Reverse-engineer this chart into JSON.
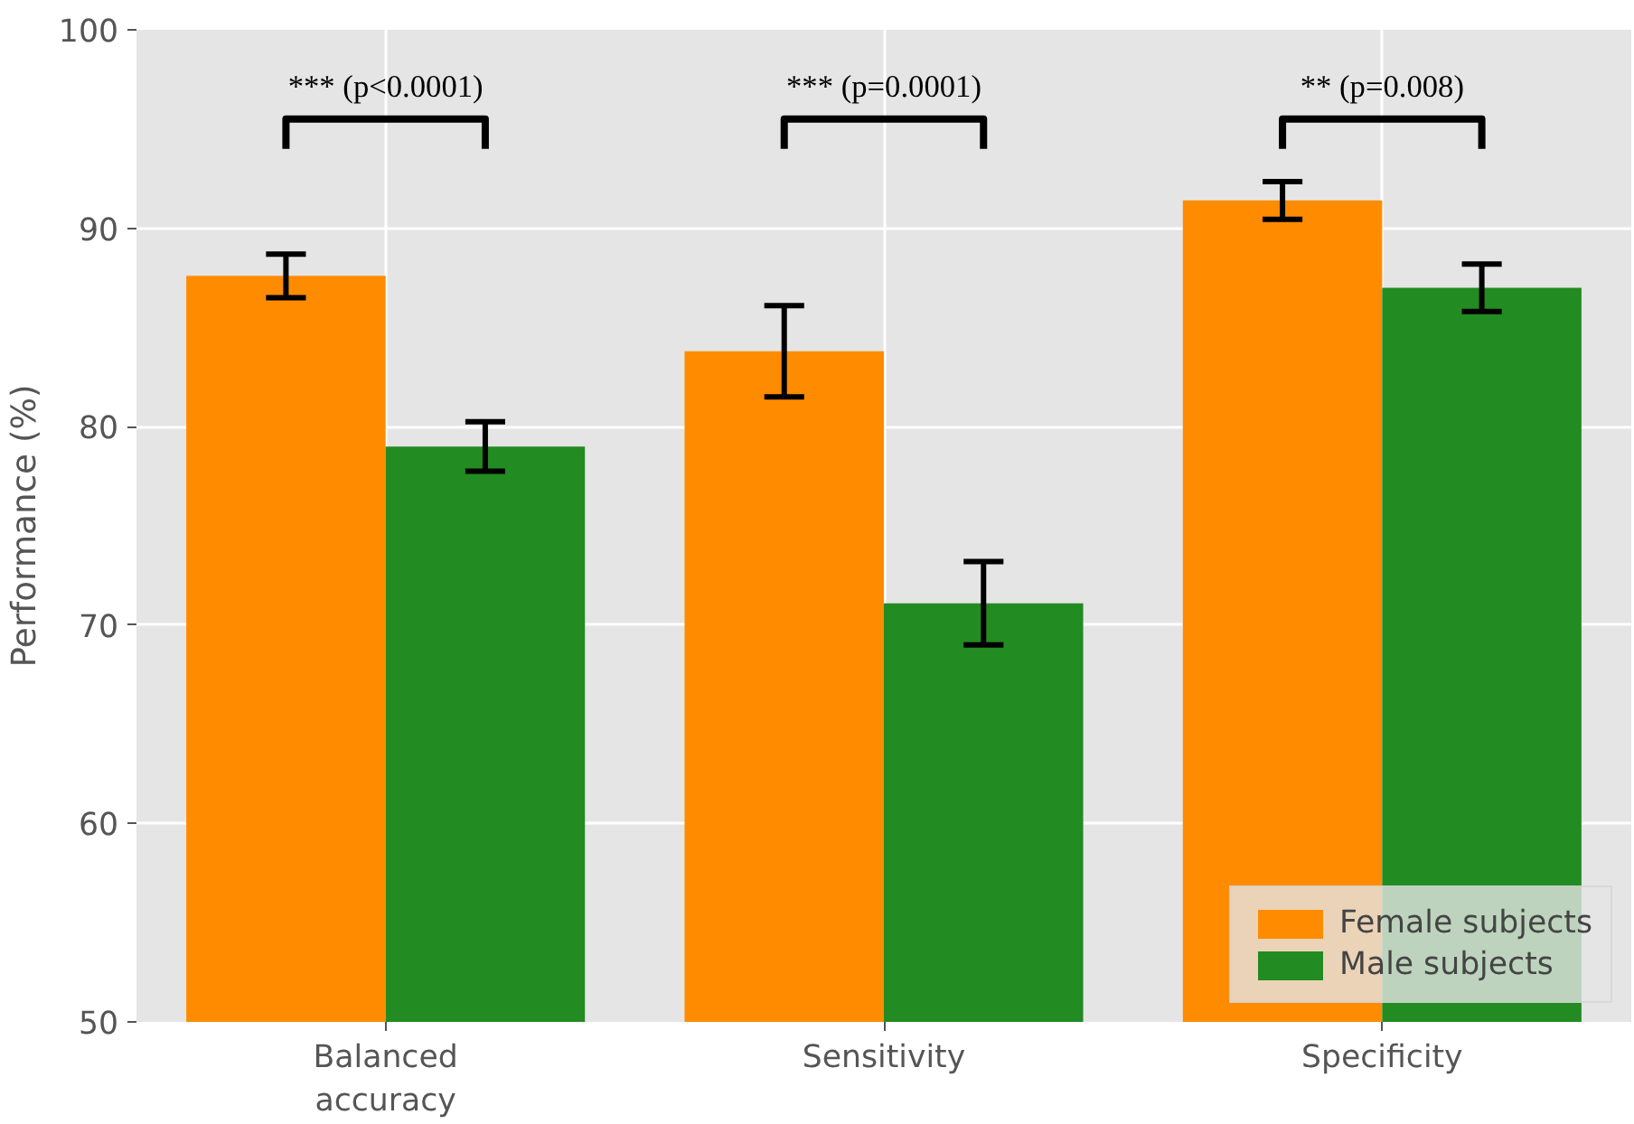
{
  "chart_data": {
    "type": "bar",
    "ylabel": "Performance (%)",
    "categories": [
      "Balanced accuracy",
      "Sensitivity",
      "Specificity"
    ],
    "series": [
      {
        "name": "Female subjects",
        "color": "#ff8c00",
        "values": [
          87.6,
          83.8,
          91.4
        ],
        "errors": [
          1.1,
          2.3,
          0.95
        ]
      },
      {
        "name": "Male subjects",
        "color": "#228b22",
        "values": [
          79.0,
          71.1,
          87.0
        ],
        "errors": [
          1.25,
          2.1,
          1.2
        ]
      }
    ],
    "ylim": [
      50,
      100
    ],
    "yticks": [
      50,
      60,
      70,
      80,
      90,
      100
    ],
    "grid": true,
    "legend": "bottom right",
    "annotations": [
      "*** (p<0.0001)",
      "*** (p=0.0001)",
      "** (p=0.008)"
    ]
  }
}
